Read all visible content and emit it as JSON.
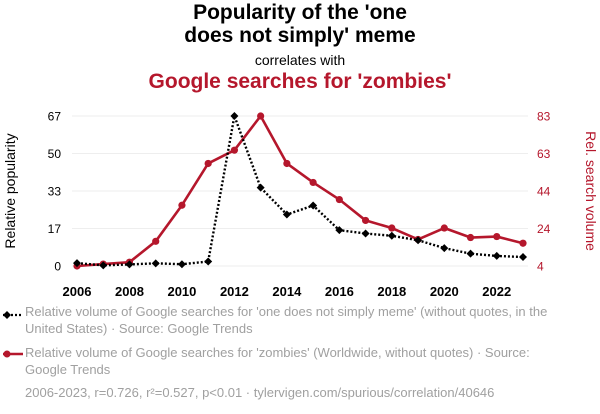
{
  "header": {
    "title_line1": "Popularity of the 'one",
    "title_line2": "does not simply' meme",
    "correlates": "correlates with",
    "title2": "Google searches for 'zombies'"
  },
  "chart_data": {
    "type": "line",
    "x": [
      2006,
      2007,
      2008,
      2009,
      2010,
      2011,
      2012,
      2013,
      2014,
      2015,
      2016,
      2017,
      2018,
      2019,
      2020,
      2021,
      2022,
      2023
    ],
    "xticks": [
      "2006",
      "2008",
      "2010",
      "2012",
      "2014",
      "2016",
      "2018",
      "2020",
      "2022"
    ],
    "ylabel_left": "Relative popularity",
    "ylabel_right": "Rel. search volume",
    "yticks_left": [
      "0",
      "17",
      "33",
      "50",
      "67"
    ],
    "yticks_right": [
      "4",
      "24",
      "44",
      "63",
      "83"
    ],
    "ylim_left": [
      0,
      67
    ],
    "ylim_right": [
      4,
      83
    ],
    "series": [
      {
        "name": "one does not simply meme",
        "axis": "left",
        "color": "#000000",
        "style": "dotted",
        "marker": "diamond",
        "values": [
          1.3,
          0.3,
          0.7,
          1.2,
          0.8,
          2.0,
          67,
          35,
          23,
          27,
          16,
          14.5,
          13.5,
          11.5,
          8,
          5.5,
          4.5,
          4
        ]
      },
      {
        "name": "zombies",
        "axis": "right",
        "color": "#b5172c",
        "style": "solid",
        "marker": "circle",
        "values": [
          4,
          5,
          6,
          17,
          36,
          58,
          65,
          83,
          58,
          48,
          39,
          28,
          24,
          18,
          24,
          19,
          19.5,
          16
        ]
      }
    ]
  },
  "legend": {
    "series1": "Relative volume of Google searches for 'one does not simply meme' (without quotes, in the United States) · Source: Google Trends",
    "series2": "Relative volume of Google searches for 'zombies' (Worldwide, without quotes) · Source: Google Trends"
  },
  "footer": "2006-2023, r=0.726, r²=0.527, p<0.01 · tylervigen.com/spurious/correlation/40646"
}
